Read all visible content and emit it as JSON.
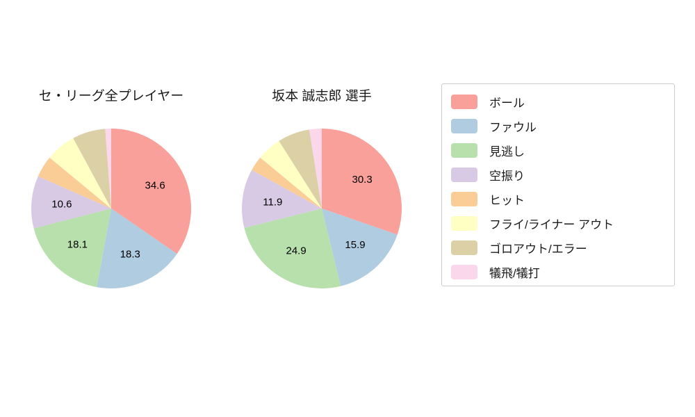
{
  "page": {
    "background": "#ffffff",
    "text_color": "#1a1a1a"
  },
  "legend": {
    "items": [
      {
        "label": "ボール",
        "color": "#f9a09a"
      },
      {
        "label": "ファウル",
        "color": "#b0cce0"
      },
      {
        "label": "見逃し",
        "color": "#b7e0ac"
      },
      {
        "label": "空振り",
        "color": "#d8c9e4"
      },
      {
        "label": "ヒット",
        "color": "#fbcd96"
      },
      {
        "label": "フライ/ライナー アウト",
        "color": "#ffffc4"
      },
      {
        "label": "ゴロアウト/エラー",
        "color": "#dcd0a6"
      },
      {
        "label": "犠飛/犠打",
        "color": "#fbd7ec"
      }
    ]
  },
  "chart_data": [
    {
      "type": "pie",
      "title": "セ・リーグ全プレイヤー",
      "start_angle_deg": 0,
      "direction": "clockwise",
      "categories": [
        "ボール",
        "ファウル",
        "見逃し",
        "空振り",
        "ヒット",
        "フライ/ライナー アウト",
        "ゴロアウト/エラー",
        "犠飛/犠打"
      ],
      "values": [
        34.6,
        18.3,
        18.1,
        10.6,
        4.4,
        6.1,
        6.7,
        1.2
      ],
      "slice_labels": [
        "34.6",
        "18.3",
        "18.1",
        "10.6",
        "",
        "",
        "",
        ""
      ],
      "colors": [
        "#f9a09a",
        "#b0cce0",
        "#b7e0ac",
        "#d8c9e4",
        "#fbcd96",
        "#ffffc4",
        "#dcd0a6",
        "#fbd7ec"
      ],
      "label_radius_ratio": 0.62,
      "legend_position": "right"
    },
    {
      "type": "pie",
      "title": "坂本 誠志郎  選手",
      "start_angle_deg": 0,
      "direction": "clockwise",
      "categories": [
        "ボール",
        "ファウル",
        "見逃し",
        "空振り",
        "ヒット",
        "フライ/ライナー アウト",
        "ゴロアウト/エラー",
        "犠飛/犠打"
      ],
      "values": [
        30.3,
        15.9,
        24.9,
        11.9,
        3.0,
        5.0,
        6.5,
        2.5
      ],
      "slice_labels": [
        "30.3",
        "15.9",
        "24.9",
        "11.9",
        "",
        "",
        "",
        ""
      ],
      "colors": [
        "#f9a09a",
        "#b0cce0",
        "#b7e0ac",
        "#d8c9e4",
        "#fbcd96",
        "#ffffc4",
        "#dcd0a6",
        "#fbd7ec"
      ],
      "label_radius_ratio": 0.62,
      "legend_position": "right"
    }
  ]
}
